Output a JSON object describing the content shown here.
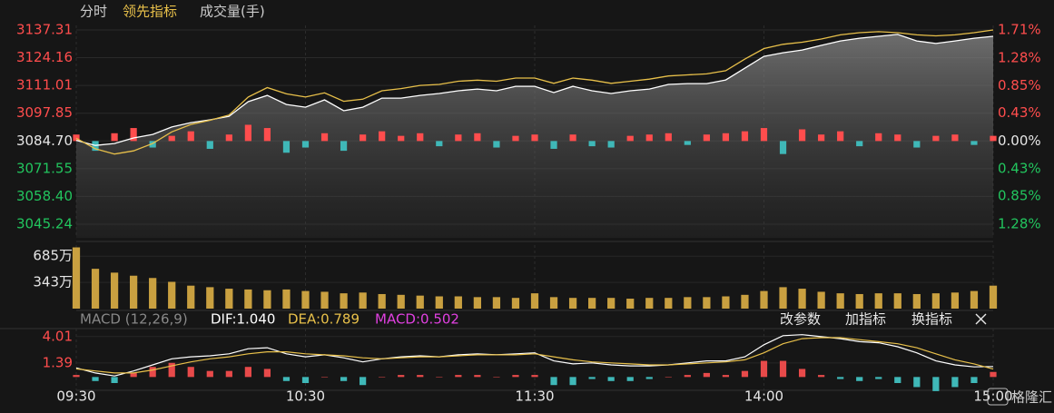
{
  "chart_data": [
    {
      "type": "line",
      "x": [
        0,
        5,
        10,
        15,
        20,
        25,
        30,
        35,
        40,
        45,
        50,
        55,
        60,
        65,
        70,
        75,
        80,
        85,
        90,
        95,
        100,
        105,
        110,
        115,
        120,
        125,
        130,
        135,
        140,
        145,
        150,
        155,
        160,
        165,
        170,
        175,
        180,
        185,
        190,
        195,
        200,
        205,
        210,
        215,
        220,
        225,
        230,
        235,
        240
      ],
      "xlim": [
        0,
        240
      ],
      "series": [
        {
          "name": "分时",
          "color": "#ffffff",
          "values": [
            3085.0,
            3082.6,
            3083.5,
            3086.1,
            3087.8,
            3091.3,
            3093.4,
            3094.7,
            3096.4,
            3103.3,
            3106.3,
            3102.0,
            3100.7,
            3104.2,
            3099.0,
            3100.7,
            3105.0,
            3105.0,
            3106.3,
            3107.2,
            3108.5,
            3109.3,
            3108.5,
            3110.6,
            3110.6,
            3107.6,
            3110.6,
            3108.5,
            3107.2,
            3108.5,
            3109.3,
            3111.5,
            3111.9,
            3111.9,
            3113.6,
            3119.2,
            3124.8,
            3126.5,
            3127.8,
            3130.0,
            3132.1,
            3133.4,
            3134.3,
            3135.2,
            3132.1,
            3130.9,
            3132.1,
            3133.4,
            3134.3
          ]
        },
        {
          "name": "领先指标",
          "color": "#e8c04a",
          "values": [
            3086.0,
            3081.0,
            3078.5,
            3080.0,
            3083.5,
            3089.0,
            3092.5,
            3094.5,
            3097.0,
            3105.5,
            3110.0,
            3107.0,
            3105.5,
            3107.5,
            3103.5,
            3104.5,
            3108.5,
            3109.5,
            3111.0,
            3111.5,
            3113.0,
            3113.5,
            3113.0,
            3114.5,
            3114.5,
            3112.0,
            3114.5,
            3113.5,
            3112.0,
            3113.0,
            3114.0,
            3115.5,
            3116.0,
            3116.5,
            3118.0,
            3123.5,
            3128.5,
            3130.5,
            3131.5,
            3133.0,
            3135.0,
            3136.0,
            3136.5,
            3136.0,
            3135.0,
            3134.5,
            3135.0,
            3136.0,
            3137.3
          ]
        }
      ],
      "bars": {
        "axis": "y2",
        "values": [
          0.1,
          -0.15,
          0.12,
          0.2,
          -0.1,
          0.08,
          0.15,
          -0.12,
          0.1,
          0.25,
          0.2,
          -0.18,
          -0.1,
          0.12,
          -0.15,
          0.1,
          0.15,
          0.08,
          0.12,
          -0.08,
          0.1,
          0.12,
          -0.1,
          0.08,
          0.1,
          -0.12,
          0.1,
          -0.08,
          -0.1,
          0.08,
          0.1,
          0.12,
          -0.06,
          0.1,
          0.12,
          0.15,
          0.2,
          -0.2,
          0.18,
          0.1,
          0.15,
          -0.08,
          0.12,
          0.1,
          -0.1,
          0.08,
          0.1,
          -0.06,
          0.08
        ]
      },
      "ylim": [
        3038.78,
        3139.46
      ],
      "yticks": [
        3137.31,
        3124.16,
        3111.01,
        3097.85,
        {
          "value": 3084.7,
          "label": "3084.70"
        },
        3071.55,
        {
          "value": 3058.4,
          "label": "3058.40"
        },
        3045.24
      ],
      "y2lim": [
        -1.49,
        1.78
      ],
      "y2ticks": [
        {
          "value": 1.71,
          "label": "1.71%"
        },
        {
          "value": 1.28,
          "label": "1.28%"
        },
        {
          "value": 0.85,
          "label": "0.85%"
        },
        {
          "value": 0.43,
          "label": "0.43%"
        },
        {
          "value": 0,
          "label": "0.00%"
        },
        {
          "value": -0.43,
          "label": "0.43%"
        },
        {
          "value": -0.85,
          "label": "0.85%"
        },
        {
          "value": -1.28,
          "label": "1.28%"
        }
      ],
      "up_color": "#ff4d4d",
      "down_color": "#22c55e",
      "flat_color": "#e6e6e6",
      "bar_down_color": "#3fb8b8",
      "grid": true
    },
    {
      "type": "bar",
      "title": "成交量(手)",
      "x": [
        0,
        5,
        10,
        15,
        20,
        25,
        30,
        35,
        40,
        45,
        50,
        55,
        60,
        65,
        70,
        75,
        80,
        85,
        90,
        95,
        100,
        105,
        110,
        115,
        120,
        125,
        130,
        135,
        140,
        145,
        150,
        155,
        160,
        165,
        170,
        175,
        180,
        185,
        190,
        195,
        200,
        205,
        210,
        215,
        220,
        225,
        230,
        235,
        240
      ],
      "xlim": [
        0,
        240
      ],
      "values": [
        800,
        520,
        470,
        430,
        400,
        350,
        300,
        280,
        260,
        250,
        240,
        250,
        230,
        220,
        200,
        210,
        190,
        180,
        170,
        160,
        160,
        150,
        150,
        140,
        200,
        150,
        140,
        140,
        140,
        130,
        140,
        140,
        150,
        150,
        160,
        180,
        230,
        280,
        260,
        220,
        200,
        190,
        200,
        200,
        190,
        200,
        210,
        230,
        300
      ],
      "color": "#c9a040",
      "ylim": [
        0,
        830
      ],
      "yticks": [
        {
          "value": 685,
          "label": "685万"
        },
        {
          "value": 343,
          "label": "343万"
        }
      ],
      "tick_color": "#e6e6e6"
    },
    {
      "type": "macd",
      "title": "MACD (12,26,9)",
      "x": [
        0,
        5,
        10,
        15,
        20,
        25,
        30,
        35,
        40,
        45,
        50,
        55,
        60,
        65,
        70,
        75,
        80,
        85,
        90,
        95,
        100,
        105,
        110,
        115,
        120,
        125,
        130,
        135,
        140,
        145,
        150,
        155,
        160,
        165,
        170,
        175,
        180,
        185,
        190,
        195,
        200,
        205,
        210,
        215,
        220,
        225,
        230,
        235,
        240
      ],
      "xlim": [
        0,
        240
      ],
      "series": [
        {
          "name": "DIF:1.040",
          "color": "#ffffff",
          "values": [
            0.9,
            0.4,
            0.1,
            0.6,
            1.2,
            1.8,
            2.0,
            2.1,
            2.3,
            2.8,
            2.9,
            2.3,
            2.0,
            2.2,
            1.9,
            1.5,
            1.8,
            2.0,
            2.1,
            2.0,
            2.2,
            2.3,
            2.2,
            2.3,
            2.4,
            1.6,
            1.3,
            1.4,
            1.2,
            1.1,
            1.1,
            1.2,
            1.4,
            1.6,
            1.6,
            2.0,
            3.2,
            4.1,
            4.2,
            4.0,
            3.8,
            3.5,
            3.4,
            3.0,
            2.4,
            1.6,
            1.2,
            1.0,
            1.04
          ]
        },
        {
          "name": "DEA:0.789",
          "color": "#e8c04a",
          "values": [
            0.8,
            0.6,
            0.4,
            0.4,
            0.7,
            1.1,
            1.5,
            1.8,
            2.0,
            2.3,
            2.5,
            2.5,
            2.3,
            2.2,
            2.1,
            1.9,
            1.8,
            1.9,
            2.0,
            2.0,
            2.1,
            2.2,
            2.2,
            2.2,
            2.3,
            2.0,
            1.7,
            1.5,
            1.4,
            1.3,
            1.2,
            1.2,
            1.3,
            1.4,
            1.5,
            1.7,
            2.4,
            3.3,
            3.8,
            3.9,
            3.9,
            3.7,
            3.5,
            3.3,
            2.9,
            2.3,
            1.7,
            1.3,
            0.789
          ]
        }
      ],
      "bars": {
        "name": "MACD:0.502",
        "color": "#e040e0",
        "up_color": "#e84a4a",
        "down_color": "#3fb8b8",
        "values": [
          0.2,
          -0.4,
          -0.6,
          0.4,
          1.0,
          1.4,
          1.0,
          0.6,
          0.6,
          1.0,
          0.8,
          -0.4,
          -0.6,
          0,
          -0.4,
          -0.8,
          0,
          0.2,
          0.2,
          0,
          0.2,
          0.2,
          0,
          0.2,
          0.2,
          -0.8,
          -0.8,
          -0.2,
          -0.4,
          -0.4,
          -0.2,
          0,
          0.2,
          0.4,
          0.2,
          0.6,
          1.6,
          1.6,
          0.8,
          0.2,
          -0.2,
          -0.4,
          -0.2,
          -0.6,
          -1.0,
          -1.4,
          -1.0,
          -0.6,
          0.502
        ]
      },
      "ylim": [
        -1.32,
        4.8
      ],
      "yticks": [
        4.01,
        1.39
      ],
      "tick_color": "#ff4d4d",
      "xticks": [
        {
          "value": 0,
          "label": "09:30"
        },
        {
          "value": 60,
          "label": "10:30"
        },
        {
          "value": 120,
          "label": "11:30"
        },
        {
          "value": 180,
          "label": "14:00"
        },
        {
          "value": 240,
          "label": "15:00"
        }
      ],
      "buttons": [
        "改参数",
        "加指标",
        "换指标"
      ]
    }
  ],
  "watermark": "格隆汇"
}
